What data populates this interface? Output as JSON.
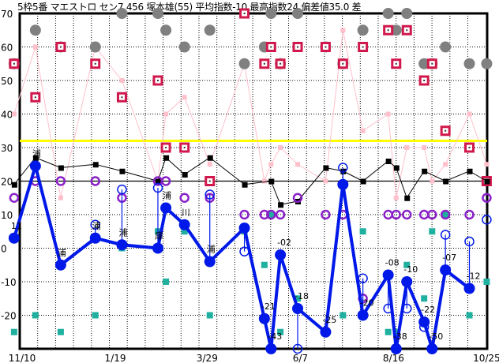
{
  "chart_data": {
    "type": "scatter",
    "title": "5枠5番 マエストロ セン7 456 塚本雄(55) 平均指数-10 最高指数24 偏差値35.0 差",
    "ylim": [
      -30,
      70
    ],
    "yticks": [
      "70",
      "60",
      "50",
      "40",
      "30",
      "20",
      "10",
      "0",
      "-10",
      "-20"
    ],
    "yticks_values": [
      70,
      60,
      50,
      40,
      30,
      20,
      10,
      0,
      -10,
      -20
    ],
    "xticks": [
      "11/10",
      "1/19",
      "3/29",
      "6/7",
      "8/16",
      "10/25"
    ],
    "grid": true,
    "reference_lines": [
      {
        "value": 32,
        "color": "#ffff00"
      },
      {
        "value": 20,
        "color": "#000000"
      }
    ],
    "colors": {
      "main": "#0018e8",
      "black": "#000000",
      "pink": "#ffc0cb",
      "gray": "#808080",
      "red": "#d0184c",
      "purple": "#8a20c8",
      "teal": "#20b0a0"
    },
    "main_series": [
      {
        "date": "11/4",
        "value": 3,
        "label": "11"
      },
      {
        "date": "11/20",
        "value": 24.5,
        "label": "浦"
      },
      {
        "date": "12/9",
        "value": -5,
        "label": "浦"
      },
      {
        "date": "1/4",
        "value": 3,
        "label": "浦"
      },
      {
        "date": "1/24",
        "value": 1,
        "label": "浦"
      },
      {
        "date": "2/20",
        "value": 0,
        "label": "扉"
      },
      {
        "date": "2/26",
        "value": 12,
        "label": "浦"
      },
      {
        "date": "3/12",
        "value": 7,
        "label": "川"
      },
      {
        "date": "3/31",
        "value": -4,
        "label": "浦"
      },
      {
        "date": "4/26",
        "value": 6,
        "label": ""
      },
      {
        "date": "5/11",
        "value": -21,
        "label": "-21"
      },
      {
        "date": "5/16",
        "value": -30,
        "label": "-43"
      },
      {
        "date": "5/23",
        "value": -2,
        "label": "-02"
      },
      {
        "date": "6/5",
        "value": -18,
        "label": "-18"
      },
      {
        "date": "6/26",
        "value": -25,
        "label": "-25"
      },
      {
        "date": "7/9",
        "value": 19,
        "label": ""
      },
      {
        "date": "7/24",
        "value": -20,
        "label": "-20"
      },
      {
        "date": "8/12",
        "value": -8,
        "label": "-08"
      },
      {
        "date": "8/18",
        "value": -30,
        "label": "-38"
      },
      {
        "date": "8/26",
        "value": -10,
        "label": "-10"
      },
      {
        "date": "9/8",
        "value": -22,
        "label": "-22"
      },
      {
        "date": "9/14",
        "value": -30,
        "label": "-50"
      },
      {
        "date": "9/24",
        "value": -6.5,
        "label": "-07"
      },
      {
        "date": "10/12",
        "value": -12,
        "label": "-12"
      }
    ],
    "hollow_blue": [
      {
        "date": "1/4",
        "value": 7
      },
      {
        "date": "1/24",
        "value": 17.5
      },
      {
        "date": "2/20",
        "value": 18
      },
      {
        "date": "3/31",
        "value": 16
      },
      {
        "date": "4/26",
        "value": -1
      },
      {
        "date": "6/5",
        "value": -30
      },
      {
        "date": "7/9",
        "value": 24
      },
      {
        "date": "7/24",
        "value": -9
      },
      {
        "date": "8/12",
        "value": -18
      },
      {
        "date": "8/26",
        "value": -18
      },
      {
        "date": "9/8",
        "value": -23.5
      },
      {
        "date": "9/24",
        "value": 4
      },
      {
        "date": "10/12",
        "value": 2
      },
      {
        "date": "10/25",
        "value": 8.5
      }
    ],
    "black_series": [
      {
        "date": "11/4",
        "value": 19
      },
      {
        "date": "11/20",
        "value": 27
      },
      {
        "date": "12/9",
        "value": 24
      },
      {
        "date": "1/4",
        "value": 25
      },
      {
        "date": "1/24",
        "value": 23
      },
      {
        "date": "2/20",
        "value": 20
      },
      {
        "date": "2/26",
        "value": 27
      },
      {
        "date": "3/12",
        "value": 22
      },
      {
        "date": "3/31",
        "value": 27
      },
      {
        "date": "4/26",
        "value": 19
      },
      {
        "date": "5/16",
        "value": 20
      },
      {
        "date": "5/23",
        "value": 13
      },
      {
        "date": "6/5",
        "value": 14
      },
      {
        "date": "6/26",
        "value": 24
      },
      {
        "date": "7/9",
        "value": 23
      },
      {
        "date": "7/24",
        "value": 20
      },
      {
        "date": "8/12",
        "value": 26
      },
      {
        "date": "8/18",
        "value": 24
      },
      {
        "date": "8/26",
        "value": 15
      },
      {
        "date": "9/8",
        "value": 23
      },
      {
        "date": "9/24",
        "value": 20
      },
      {
        "date": "10/12",
        "value": 23
      },
      {
        "date": "10/25",
        "value": 20
      }
    ],
    "pink_series": [
      {
        "date": "11/4",
        "value": 40
      },
      {
        "date": "11/20",
        "value": 60
      },
      {
        "date": "12/9",
        "value": 15
      },
      {
        "date": "1/4",
        "value": 60
      },
      {
        "date": "1/24",
        "value": 50
      },
      {
        "date": "2/20",
        "value": 20
      },
      {
        "date": "2/26",
        "value": 40
      },
      {
        "date": "3/12",
        "value": 45
      },
      {
        "date": "3/31",
        "value": 25
      },
      {
        "date": "4/26",
        "value": 55
      },
      {
        "date": "5/11",
        "value": 20
      },
      {
        "date": "5/16",
        "value": 25
      },
      {
        "date": "5/23",
        "value": 30
      },
      {
        "date": "6/5",
        "value": 25
      },
      {
        "date": "6/26",
        "value": 20
      },
      {
        "date": "7/9",
        "value": 65
      },
      {
        "date": "7/24",
        "value": 35
      },
      {
        "date": "8/12",
        "value": 40
      },
      {
        "date": "8/18",
        "value": 15
      },
      {
        "date": "8/26",
        "value": 30
      },
      {
        "date": "9/8",
        "value": 30
      },
      {
        "date": "9/14",
        "value": 20
      },
      {
        "date": "9/24",
        "value": 25
      },
      {
        "date": "10/12",
        "value": 40
      },
      {
        "date": "10/25",
        "value": 25
      }
    ],
    "gray_circles": [
      {
        "date": "1/24",
        "value": 70
      },
      {
        "date": "2/20",
        "value": 70
      },
      {
        "date": "5/16",
        "value": 70
      },
      {
        "date": "6/5",
        "value": 70
      },
      {
        "date": "8/12",
        "value": 70
      },
      {
        "date": "8/26",
        "value": 70
      },
      {
        "date": "11/20",
        "value": 65
      },
      {
        "date": "2/26",
        "value": 65
      },
      {
        "date": "3/31",
        "value": 65
      },
      {
        "date": "7/24",
        "value": 65
      },
      {
        "date": "8/18",
        "value": 65
      },
      {
        "date": "12/9",
        "value": 60
      },
      {
        "date": "1/4",
        "value": 60
      },
      {
        "date": "3/12",
        "value": 60
      },
      {
        "date": "5/11",
        "value": 60
      },
      {
        "date": "6/26",
        "value": 60
      },
      {
        "date": "9/24",
        "value": 60
      },
      {
        "date": "11/4",
        "value": 55
      },
      {
        "date": "4/26",
        "value": 55
      },
      {
        "date": "5/23",
        "value": 55
      },
      {
        "date": "7/9",
        "value": 55
      },
      {
        "date": "9/8",
        "value": 55
      },
      {
        "date": "9/14",
        "value": 55
      },
      {
        "date": "10/12",
        "value": 55
      },
      {
        "date": "10/25",
        "value": 55
      }
    ],
    "red_squares": [
      {
        "date": "4/26",
        "value": 70
      },
      {
        "date": "8/12",
        "value": 65
      },
      {
        "date": "8/26",
        "value": 65
      },
      {
        "date": "12/9",
        "value": 60
      },
      {
        "date": "5/16",
        "value": 60
      },
      {
        "date": "6/5",
        "value": 60
      },
      {
        "date": "6/26",
        "value": 60
      },
      {
        "date": "7/24",
        "value": 60
      },
      {
        "date": "11/4",
        "value": 55
      },
      {
        "date": "1/4",
        "value": 55
      },
      {
        "date": "5/11",
        "value": 55
      },
      {
        "date": "5/23",
        "value": 55
      },
      {
        "date": "7/9",
        "value": 55
      },
      {
        "date": "8/18",
        "value": 55
      },
      {
        "date": "9/14",
        "value": 55
      },
      {
        "date": "2/20",
        "value": 50
      },
      {
        "date": "9/8",
        "value": 50
      },
      {
        "date": "11/20",
        "value": 45
      },
      {
        "date": "1/24",
        "value": 45
      },
      {
        "date": "2/26",
        "value": 30
      },
      {
        "date": "3/12",
        "value": 30
      },
      {
        "date": "10/12",
        "value": 30
      },
      {
        "date": "9/24",
        "value": 35
      },
      {
        "date": "3/31",
        "value": 20
      },
      {
        "date": "10/25",
        "value": 20
      }
    ],
    "purple_circles": [
      {
        "date": "11/20",
        "value": 20
      },
      {
        "date": "12/9",
        "value": 20
      },
      {
        "date": "1/4",
        "value": 20
      },
      {
        "date": "2/20",
        "value": 20
      },
      {
        "date": "2/26",
        "value": 20
      },
      {
        "date": "11/4",
        "value": 15
      },
      {
        "date": "1/24",
        "value": 15
      },
      {
        "date": "3/12",
        "value": 15
      },
      {
        "date": "3/31",
        "value": 15
      },
      {
        "date": "6/5",
        "value": 15
      },
      {
        "date": "10/25",
        "value": 15
      },
      {
        "date": "4/26",
        "value": 10
      },
      {
        "date": "5/11",
        "value": 10
      },
      {
        "date": "5/16",
        "value": 10
      },
      {
        "date": "5/23",
        "value": 10
      },
      {
        "date": "6/26",
        "value": 10
      },
      {
        "date": "7/9",
        "value": 10
      },
      {
        "date": "8/12",
        "value": 10
      },
      {
        "date": "8/18",
        "value": 10
      },
      {
        "date": "8/26",
        "value": 10
      },
      {
        "date": "9/8",
        "value": 10
      },
      {
        "date": "9/14",
        "value": 10
      },
      {
        "date": "9/24",
        "value": 10
      },
      {
        "date": "10/12",
        "value": 10
      },
      {
        "date": "7/24",
        "value": -15
      }
    ],
    "teal_squares": [
      {
        "date": "2/20",
        "value": 5
      },
      {
        "date": "3/12",
        "value": 5
      },
      {
        "date": "4/26",
        "value": 5
      },
      {
        "date": "7/24",
        "value": 5
      },
      {
        "date": "9/14",
        "value": 5
      },
      {
        "date": "1/24",
        "value": 0
      },
      {
        "date": "5/11",
        "value": -5
      },
      {
        "date": "8/26",
        "value": -5
      },
      {
        "date": "2/26",
        "value": -10
      },
      {
        "date": "10/25",
        "value": -10
      },
      {
        "date": "6/5",
        "value": -15
      },
      {
        "date": "9/8",
        "value": -15
      },
      {
        "date": "11/20",
        "value": -20
      },
      {
        "date": "1/4",
        "value": -20
      },
      {
        "date": "3/31",
        "value": -20
      },
      {
        "date": "7/9",
        "value": -20
      },
      {
        "date": "10/12",
        "value": -20
      },
      {
        "date": "11/4",
        "value": -25
      },
      {
        "date": "12/9",
        "value": -25
      },
      {
        "date": "5/23",
        "value": -25
      },
      {
        "date": "6/26",
        "value": -25
      },
      {
        "date": "8/12",
        "value": -25
      },
      {
        "date": "8/18",
        "value": -25
      },
      {
        "date": "5/16",
        "value": 10
      },
      {
        "date": "9/24",
        "value": 10
      }
    ]
  }
}
